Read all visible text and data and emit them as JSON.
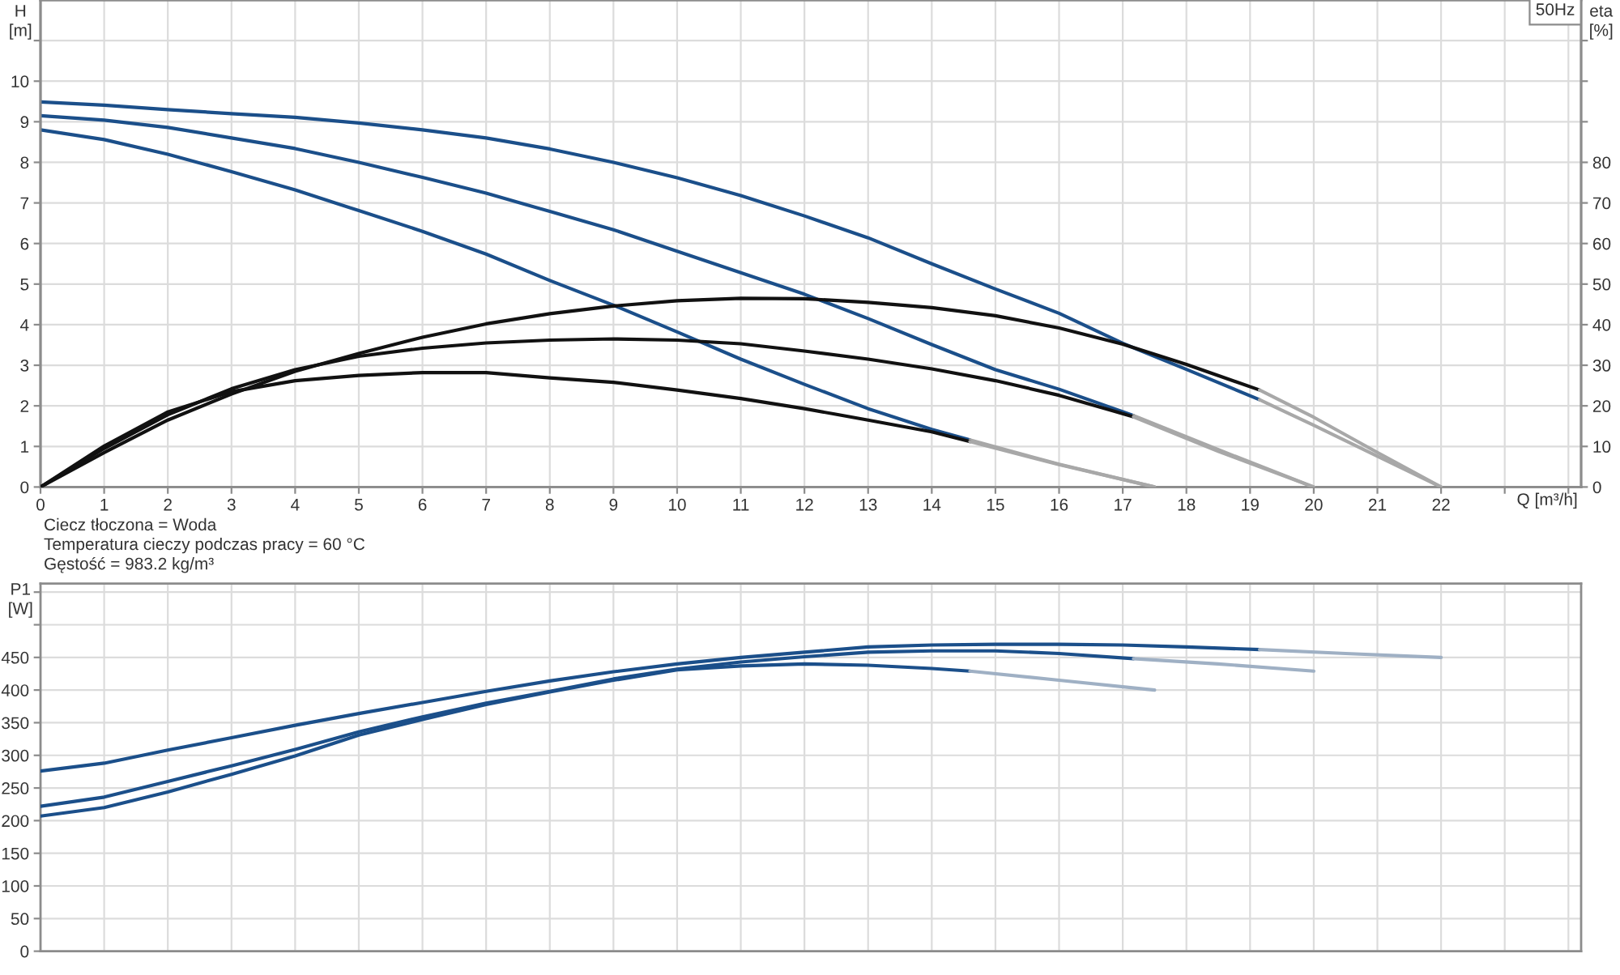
{
  "chart_data": [
    {
      "type": "line",
      "title": "50Hz",
      "xlabel": "Q [m³/h]",
      "ylabel": "H\n[m]",
      "y2label": "eta\n[%]",
      "xlim": [
        0,
        24.2
      ],
      "xticks": [
        0,
        1,
        2,
        3,
        4,
        5,
        6,
        7,
        8,
        9,
        10,
        11,
        12,
        13,
        14,
        15,
        16,
        17,
        18,
        19,
        20,
        21,
        22,
        {
          "value": 23,
          "label": null
        },
        {
          "value": 24,
          "label": null
        }
      ],
      "ylim": [
        0,
        12
      ],
      "yticks": [
        0,
        1,
        2,
        3,
        4,
        5,
        6,
        7,
        8,
        9,
        10,
        {
          "value": 11,
          "label": null
        }
      ],
      "y2lim": [
        0,
        120
      ],
      "y2ticks": [
        0,
        10,
        20,
        30,
        40,
        50,
        60,
        70,
        80,
        {
          "value": 90,
          "label": null
        },
        {
          "value": 100,
          "label": null
        },
        {
          "value": 110,
          "label": null
        }
      ],
      "grid": true,
      "line_style": "solid",
      "series": [
        {
          "color": "#1b4f8a",
          "x": [
            0,
            1,
            2,
            3,
            4,
            5,
            6,
            7,
            8,
            9,
            10,
            11,
            12,
            13,
            14,
            15,
            16,
            17,
            18,
            19.15
          ],
          "values": [
            9.49,
            9.41,
            9.3,
            9.2,
            9.11,
            8.97,
            8.8,
            8.6,
            8.33,
            8.0,
            7.62,
            7.18,
            6.68,
            6.14,
            5.5,
            4.88,
            4.28,
            3.54,
            2.9,
            2.15
          ]
        },
        {
          "color": "#a8a8a8",
          "x": [
            19.15,
            20,
            21,
            22
          ],
          "values": [
            2.15,
            1.52,
            0.76,
            0
          ]
        },
        {
          "color": "#1b4f8a",
          "x": [
            0,
            1,
            2,
            3,
            4,
            5,
            6,
            7,
            8,
            9,
            10,
            11,
            12,
            13,
            14,
            15,
            16,
            17.17
          ],
          "values": [
            9.15,
            9.04,
            8.86,
            8.6,
            8.34,
            8.0,
            7.63,
            7.24,
            6.79,
            6.34,
            5.81,
            5.28,
            4.75,
            4.15,
            3.51,
            2.89,
            2.41,
            1.76
          ]
        },
        {
          "color": "#a8a8a8",
          "x": [
            17.17,
            18.5,
            20
          ],
          "values": [
            1.76,
            0.92,
            0
          ]
        },
        {
          "color": "#1b4f8a",
          "x": [
            0,
            1,
            2,
            3,
            4,
            5,
            6,
            7,
            8,
            9,
            10,
            11,
            12,
            13,
            14,
            14.6
          ],
          "values": [
            8.8,
            8.56,
            8.2,
            7.77,
            7.32,
            6.81,
            6.3,
            5.74,
            5.09,
            4.48,
            3.82,
            3.15,
            2.53,
            1.93,
            1.42,
            1.16
          ]
        },
        {
          "color": "#a8a8a8",
          "x": [
            14.6,
            16,
            17.5
          ],
          "values": [
            1.16,
            0.56,
            0
          ]
        },
        {
          "color": "#111111",
          "axis": "y2",
          "x": [
            0,
            1,
            2,
            3,
            4,
            5,
            6,
            7,
            8,
            9,
            10,
            11,
            12,
            13,
            14,
            15,
            16,
            17,
            18,
            19.15
          ],
          "values": [
            0,
            8.5,
            16.5,
            22.9,
            28.5,
            32.9,
            36.9,
            40.2,
            42.7,
            44.6,
            45.9,
            46.5,
            46.4,
            45.5,
            44.2,
            42.2,
            39.2,
            35.2,
            30.2,
            23.9
          ]
        },
        {
          "color": "#a8a8a8",
          "axis": "y2",
          "x": [
            19.15,
            20,
            21,
            22
          ],
          "values": [
            23.9,
            17.2,
            8.5,
            0
          ]
        },
        {
          "color": "#111111",
          "axis": "y2",
          "x": [
            0,
            1,
            2,
            3,
            4,
            5,
            6,
            7,
            8,
            9,
            10,
            11,
            12,
            13,
            14,
            15,
            16,
            17.17
          ],
          "values": [
            0,
            9.5,
            17.8,
            24.2,
            28.9,
            32.2,
            34.2,
            35.5,
            36.2,
            36.5,
            36.2,
            35.3,
            33.5,
            31.5,
            29.1,
            26.2,
            22.6,
            17.3
          ]
        },
        {
          "color": "#a8a8a8",
          "axis": "y2",
          "x": [
            17.17,
            18.5,
            20
          ],
          "values": [
            17.3,
            8.8,
            0
          ]
        },
        {
          "color": "#111111",
          "axis": "y2",
          "x": [
            0,
            1,
            2,
            3,
            4,
            5,
            6,
            7,
            8,
            9,
            10,
            11,
            12,
            13,
            14,
            14.6
          ],
          "values": [
            0,
            10.1,
            18.5,
            23.5,
            26.2,
            27.5,
            28.2,
            28.2,
            26.9,
            25.8,
            23.9,
            21.8,
            19.3,
            16.5,
            13.6,
            11.2
          ]
        },
        {
          "color": "#a8a8a8",
          "axis": "y2",
          "x": [
            14.6,
            16,
            17.5
          ],
          "values": [
            11.2,
            5.5,
            0
          ]
        }
      ],
      "annotations": [
        "Ciecz tłoczona = Woda",
        "Temperatura cieczy podczas pracy = 60 °C",
        "Gęstość = 983.2 kg/m³"
      ]
    },
    {
      "type": "line",
      "ylabel": "P1\n[W]",
      "xlim": [
        0,
        24.2
      ],
      "xticks": [
        0,
        1,
        2,
        3,
        4,
        5,
        6,
        7,
        8,
        9,
        10,
        11,
        12,
        13,
        14,
        15,
        16,
        17,
        18,
        19,
        20,
        21,
        22,
        23,
        24
      ],
      "ylim": [
        0,
        563
      ],
      "yticks": [
        0,
        50,
        100,
        150,
        200,
        250,
        300,
        350,
        400,
        450,
        {
          "value": 500,
          "label": null
        },
        {
          "value": 550,
          "label": null
        }
      ],
      "tick_labels": "y",
      "grid": true,
      "line_style": "solid",
      "series": [
        {
          "color": "#1b4f8a",
          "x": [
            0,
            1,
            2,
            3,
            4,
            5,
            6,
            7,
            8,
            9,
            10,
            11,
            12,
            13,
            14,
            15,
            16,
            17,
            18,
            19.15
          ],
          "values": [
            276,
            288,
            308,
            327,
            346,
            364,
            381,
            398,
            414,
            428,
            440,
            450,
            458,
            466,
            469,
            470,
            470,
            469,
            466,
            462
          ]
        },
        {
          "color": "#9fb0c4",
          "x": [
            19.15,
            20.5,
            22
          ],
          "values": [
            462,
            456,
            450
          ]
        },
        {
          "color": "#1b4f8a",
          "x": [
            0,
            1,
            2,
            3,
            4,
            5,
            6,
            7,
            8,
            9,
            10,
            11,
            12,
            13,
            14,
            15,
            16,
            17.17
          ],
          "values": [
            222,
            236,
            260,
            284,
            309,
            336,
            359,
            380,
            398,
            417,
            432,
            443,
            451,
            458,
            460,
            460,
            456,
            448
          ]
        },
        {
          "color": "#9fb0c4",
          "x": [
            17.17,
            18.5,
            20
          ],
          "values": [
            448,
            440,
            429
          ]
        },
        {
          "color": "#1b4f8a",
          "x": [
            0,
            1,
            2,
            3,
            4,
            5,
            6,
            7,
            8,
            9,
            10,
            11,
            12,
            13,
            14,
            14.6
          ],
          "values": [
            207,
            220,
            244,
            271,
            299,
            331,
            355,
            378,
            397,
            415,
            431,
            437,
            440,
            438,
            433,
            429
          ]
        },
        {
          "color": "#9fb0c4",
          "x": [
            14.6,
            16,
            17.5
          ],
          "values": [
            429,
            415,
            400
          ]
        }
      ]
    }
  ]
}
